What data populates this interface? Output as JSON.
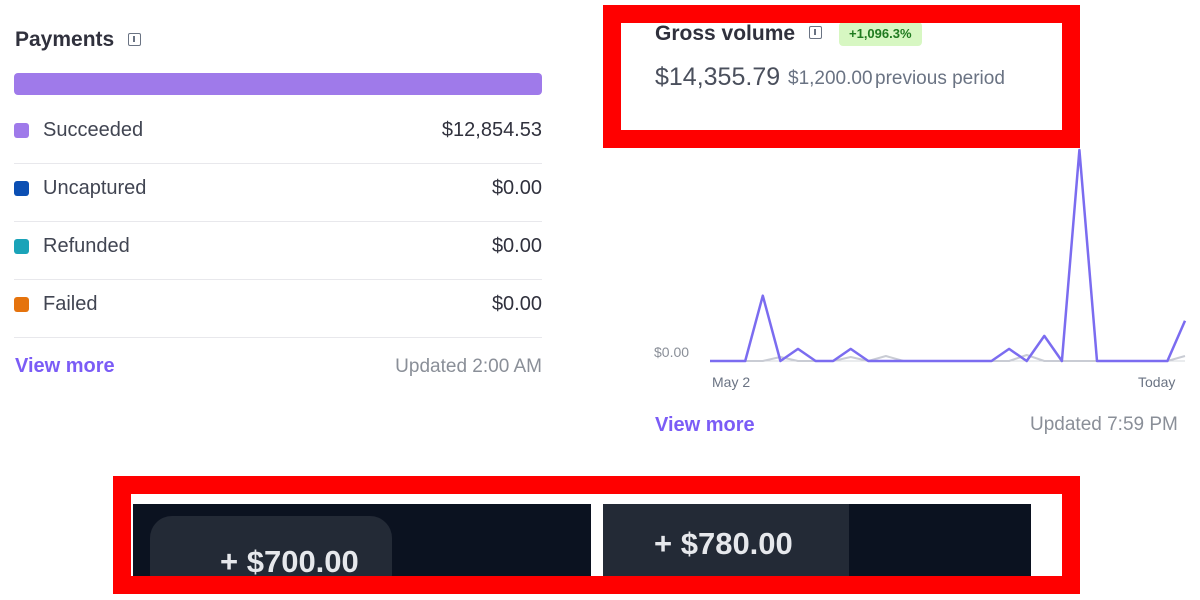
{
  "payments": {
    "title": "Payments",
    "bar_color": "#9f7aea",
    "legend": [
      {
        "label": "Succeeded",
        "value": "$12,854.53",
        "color": "#9f7aea"
      },
      {
        "label": "Uncaptured",
        "value": "$0.00",
        "color": "#0b4fb3"
      },
      {
        "label": "Refunded",
        "value": "$0.00",
        "color": "#1aa3b8"
      },
      {
        "label": "Failed",
        "value": "$0.00",
        "color": "#e5730d"
      }
    ],
    "view_more": "View more",
    "updated": "Updated 2:00 AM"
  },
  "gross_volume": {
    "title": "Gross volume",
    "change_badge": "+1,096.3%",
    "amount": "$14,355.79",
    "previous_amount": "$1,200.00",
    "previous_label": "previous period",
    "y_zero_label": "$0.00",
    "x_start": "May 2",
    "x_end": "Today",
    "view_more": "View more",
    "updated": "Updated 7:59 PM"
  },
  "chart_data": {
    "type": "line",
    "series": [
      {
        "values": [
          0,
          0,
          0,
          65,
          0,
          12,
          0,
          0,
          12,
          0,
          0,
          0,
          0,
          0,
          0,
          0,
          0,
          12,
          0,
          25,
          0,
          210,
          0,
          0,
          0,
          0,
          0,
          40
        ]
      },
      {
        "values": [
          0,
          0,
          0,
          0,
          4,
          0,
          0,
          0,
          4,
          0,
          5,
          0,
          0,
          0,
          0,
          0,
          0,
          0,
          6,
          0,
          0,
          0,
          0,
          0,
          0,
          0,
          0,
          5
        ]
      }
    ],
    "colors": [
      "#7b6cf0",
      "#c9ccd4"
    ],
    "x_labels": [
      "May 2",
      "Today"
    ],
    "y_label": "$0.00"
  },
  "bottom_panel": {
    "amount_left": "+ $700.00",
    "amount_right": "+ $780.00"
  },
  "colors": {
    "accent": "#7b5cf6",
    "highlight_frame": "#ff0000",
    "dark_bg": "#0b1220"
  }
}
